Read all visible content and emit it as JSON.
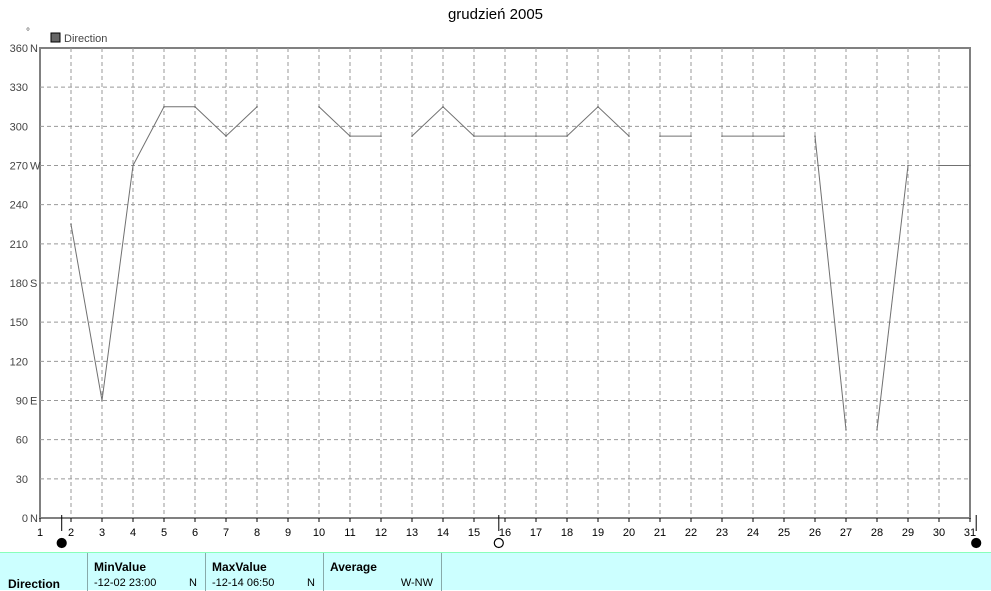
{
  "title": "grudzień 2005",
  "chart_data": {
    "type": "line",
    "title": "grudzień 2005",
    "legend": {
      "label": "Direction",
      "color": "#666666",
      "position": "top-left"
    },
    "y_unit_mark": "°",
    "ylim": [
      0,
      360
    ],
    "xlim": [
      1,
      31
    ],
    "grid": true,
    "y_ticks": [
      {
        "value": 0,
        "label": "0",
        "dir": "N"
      },
      {
        "value": 30,
        "label": "30",
        "dir": ""
      },
      {
        "value": 60,
        "label": "60",
        "dir": ""
      },
      {
        "value": 90,
        "label": "90",
        "dir": "E"
      },
      {
        "value": 120,
        "label": "120",
        "dir": ""
      },
      {
        "value": 150,
        "label": "150",
        "dir": ""
      },
      {
        "value": 180,
        "label": "180",
        "dir": "S"
      },
      {
        "value": 210,
        "label": "210",
        "dir": ""
      },
      {
        "value": 240,
        "label": "240",
        "dir": ""
      },
      {
        "value": 270,
        "label": "270",
        "dir": "W"
      },
      {
        "value": 300,
        "label": "300",
        "dir": ""
      },
      {
        "value": 330,
        "label": "330",
        "dir": ""
      },
      {
        "value": 360,
        "label": "360",
        "dir": "N"
      }
    ],
    "x_ticks": [
      "1",
      "2",
      "3",
      "4",
      "5",
      "6",
      "7",
      "8",
      "9",
      "10",
      "11",
      "12",
      "13",
      "14",
      "15",
      "16",
      "17",
      "18",
      "19",
      "20",
      "21",
      "22",
      "23",
      "24",
      "25",
      "26",
      "27",
      "28",
      "29",
      "30",
      "31"
    ],
    "series": [
      {
        "segments": [
          [
            [
              2,
              225
            ],
            [
              3,
              90
            ],
            [
              4,
              270
            ],
            [
              5,
              315
            ],
            [
              6,
              315
            ],
            [
              7,
              292.5
            ],
            [
              8,
              315
            ]
          ],
          [
            [
              10,
              315
            ],
            [
              11,
              292.5
            ],
            [
              12,
              292.5
            ]
          ],
          [
            [
              13,
              292.5
            ],
            [
              14,
              315
            ],
            [
              15,
              292.5
            ],
            [
              16,
              292.5
            ],
            [
              17,
              292.5
            ],
            [
              18,
              292.5
            ],
            [
              19,
              315
            ],
            [
              20,
              292.5
            ]
          ],
          [
            [
              21,
              292.5
            ],
            [
              22,
              292.5
            ]
          ],
          [
            [
              23,
              292.5
            ],
            [
              24,
              292.5
            ],
            [
              25,
              292.5
            ]
          ],
          [
            [
              26,
              292.5
            ],
            [
              27,
              67.5
            ]
          ],
          [
            [
              28,
              67.5
            ],
            [
              29,
              270
            ]
          ],
          [
            [
              30,
              270
            ],
            [
              31,
              270
            ]
          ]
        ]
      }
    ],
    "moon_phases": [
      {
        "day": 1.7,
        "phase": "new"
      },
      {
        "day": 15.8,
        "phase": "full"
      },
      {
        "day": 31.2,
        "phase": "new"
      }
    ]
  },
  "stats": {
    "row_label": "Direction",
    "min": {
      "header": "MinValue",
      "value": "-12-02  23:00",
      "dir": "N"
    },
    "max": {
      "header": "MaxValue",
      "value": "-12-14  06:50",
      "dir": "N"
    },
    "avg": {
      "header": "Average",
      "value": "W-NW"
    }
  }
}
